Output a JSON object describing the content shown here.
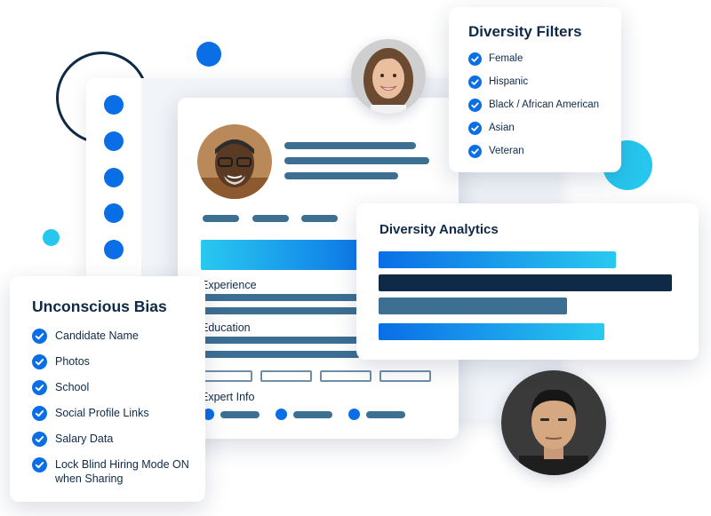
{
  "colors": {
    "primary_blue": "#0a6ee6",
    "navy": "#0f2a47",
    "cyan": "#27c6ee",
    "slate_bar": "#3d6f93"
  },
  "profile_card": {
    "section_experience": "Experience",
    "section_education": "Education",
    "section_expert_info": "Expert Info"
  },
  "filters": {
    "title": "Diversity Filters",
    "items": [
      {
        "label": "Female",
        "icon": "check-circle-icon"
      },
      {
        "label": "Hispanic",
        "icon": "check-circle-icon"
      },
      {
        "label": "Black / African American",
        "icon": "check-circle-icon"
      },
      {
        "label": "Asian",
        "icon": "check-circle-icon"
      },
      {
        "label": "Veteran",
        "icon": "check-circle-icon"
      }
    ]
  },
  "analytics": {
    "title": "Diversity Analytics"
  },
  "bias": {
    "title": "Unconscious Bias",
    "items": [
      {
        "label": "Candidate Name",
        "icon": "check-circle-icon"
      },
      {
        "label": "Photos",
        "icon": "check-circle-icon"
      },
      {
        "label": "School",
        "icon": "check-circle-icon"
      },
      {
        "label": "Social Profile Links",
        "icon": "check-circle-icon"
      },
      {
        "label": "Salary Data",
        "icon": "check-circle-icon"
      },
      {
        "label": "Lock Blind Hiring Mode ON when Sharing",
        "icon": "check-circle-icon"
      }
    ]
  }
}
